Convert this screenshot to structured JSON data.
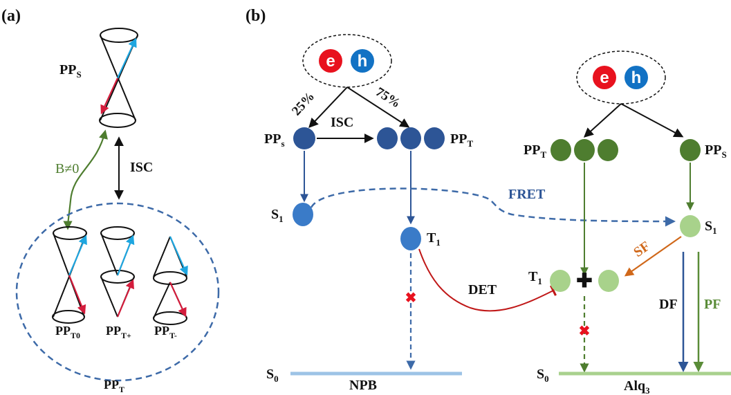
{
  "panel_a": {
    "label": "(a)",
    "pp_s": {
      "main": "PP",
      "sub": "S"
    },
    "field": "B≠0",
    "isc": "ISC",
    "pp_t0": {
      "main": "PP",
      "sub": "T0"
    },
    "pp_tplus": {
      "main": "PP",
      "sub": "T+"
    },
    "pp_tminus": {
      "main": "PP",
      "sub": "T-"
    },
    "pp_t": {
      "main": "PP",
      "sub": "T"
    }
  },
  "panel_b": {
    "label": "(b)",
    "electron": "e",
    "hole": "h",
    "pct_25": "25%",
    "pct_75": "75%",
    "npb_pps": {
      "main": "PP",
      "sub": "s"
    },
    "npb_isc": "ISC",
    "npb_ppt": {
      "main": "PP",
      "sub": "T"
    },
    "npb_s1": {
      "main": "S",
      "sub": "1"
    },
    "fret": "FRET",
    "npb_t1": {
      "main": "T",
      "sub": "1"
    },
    "det": "DET",
    "npb_s0": {
      "main": "S",
      "sub": "0"
    },
    "npb": "NPB",
    "alq_ppt": {
      "main": "PP",
      "sub": "T"
    },
    "alq_pps": {
      "main": "PP",
      "sub": "S"
    },
    "alq_s1": {
      "main": "S",
      "sub": "1"
    },
    "sf": "SF",
    "alq_t1": {
      "main": "T",
      "sub": "1"
    },
    "df": "DF",
    "pf": "PF",
    "alq_s0": {
      "main": "S",
      "sub": "0"
    },
    "alq": {
      "main": "Alq",
      "sub": "3"
    }
  },
  "colors": {
    "electron": "#e8121e",
    "hole": "#1272c4",
    "npb_dark_blue": "#2d5596",
    "npb_blue": "#3a7bc8",
    "alq_dark_green": "#4e7d2f",
    "alq_light_green": "#a8d28b",
    "spin_cyan": "#1ea6e0",
    "spin_red": "#d41c3c",
    "dashed_blue": "#3d6aa8",
    "det_red": "#c01818",
    "sf_orange": "#d0681a",
    "pf_green": "#5a8c38",
    "npb_line": "#9dc3e6",
    "alq_line": "#a9d18e",
    "cross_red": "#e8121e"
  }
}
